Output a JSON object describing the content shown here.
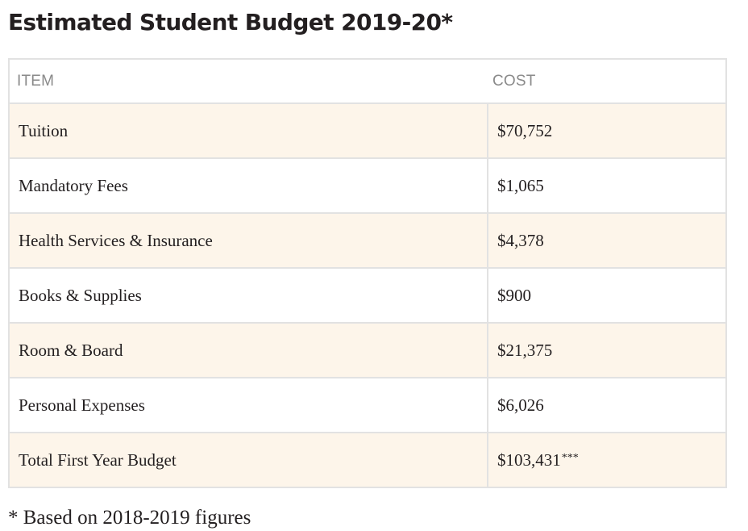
{
  "title": "Estimated Student Budget 2019-20*",
  "table": {
    "headers": {
      "item": "ITEM",
      "cost": "COST"
    },
    "rows": [
      {
        "item": "Tuition",
        "cost": "$70,752",
        "note": ""
      },
      {
        "item": "Mandatory Fees",
        "cost": "$1,065",
        "note": ""
      },
      {
        "item": "Health Services & Insurance",
        "cost": "$4,378",
        "note": ""
      },
      {
        "item": "Books & Supplies",
        "cost": "$900",
        "note": ""
      },
      {
        "item": "Room & Board",
        "cost": "$21,375",
        "note": ""
      },
      {
        "item": "Personal Expenses",
        "cost": "$6,026",
        "note": ""
      },
      {
        "item": "Total First Year Budget",
        "cost": "$103,431",
        "note": "***"
      }
    ]
  },
  "footnote": "* Based on 2018-2019 figures",
  "colors": {
    "row_highlight": "#fdf5ea",
    "border": "#e2e2e2",
    "header_text": "#8a8a8a",
    "body_text": "#231f20"
  }
}
